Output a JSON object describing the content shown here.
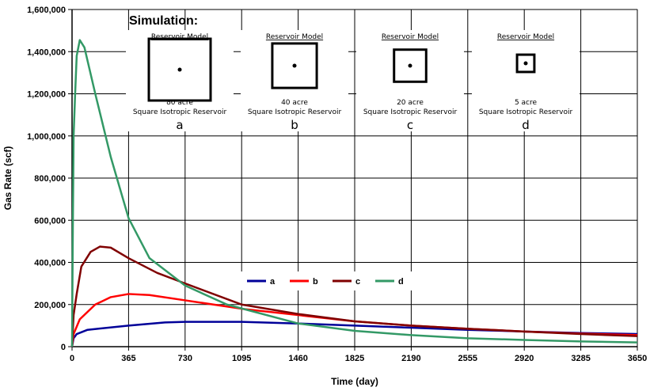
{
  "chart_data": {
    "type": "line",
    "xlabel": "Time (day)",
    "ylabel": "Gas Rate (scf)",
    "xlim": [
      0,
      3650
    ],
    "ylim": [
      0,
      1600000
    ],
    "xticks": [
      0,
      365,
      730,
      1095,
      1460,
      1825,
      2190,
      2555,
      2920,
      3285,
      3650
    ],
    "yticks": [
      0,
      200000,
      400000,
      600000,
      800000,
      1000000,
      1200000,
      1400000,
      1600000
    ],
    "ytick_labels": [
      "0",
      "200,000",
      "400,000",
      "600,000",
      "800,000",
      "1,000,000",
      "1,200,000",
      "1,400,000",
      "1,600,000"
    ],
    "grid": true,
    "legend_position": "center",
    "series": [
      {
        "name": "a",
        "color": "#000099",
        "points": [
          [
            0,
            0
          ],
          [
            10,
            40000
          ],
          [
            30,
            60000
          ],
          [
            100,
            80000
          ],
          [
            365,
            100000
          ],
          [
            600,
            115000
          ],
          [
            730,
            118000
          ],
          [
            1095,
            118000
          ],
          [
            1460,
            110000
          ],
          [
            1825,
            100000
          ],
          [
            2190,
            90000
          ],
          [
            2555,
            80000
          ],
          [
            2920,
            72000
          ],
          [
            3285,
            65000
          ],
          [
            3650,
            60000
          ]
        ]
      },
      {
        "name": "b",
        "color": "#ff0000",
        "points": [
          [
            0,
            0
          ],
          [
            10,
            60000
          ],
          [
            50,
            130000
          ],
          [
            150,
            200000
          ],
          [
            250,
            235000
          ],
          [
            365,
            250000
          ],
          [
            500,
            245000
          ],
          [
            730,
            220000
          ],
          [
            1095,
            180000
          ],
          [
            1460,
            150000
          ],
          [
            1825,
            120000
          ],
          [
            2190,
            100000
          ],
          [
            2555,
            85000
          ],
          [
            2920,
            72000
          ],
          [
            3285,
            62000
          ],
          [
            3650,
            55000
          ]
        ]
      },
      {
        "name": "c",
        "color": "#800000",
        "points": [
          [
            0,
            0
          ],
          [
            10,
            150000
          ],
          [
            30,
            250000
          ],
          [
            60,
            380000
          ],
          [
            120,
            450000
          ],
          [
            180,
            475000
          ],
          [
            250,
            470000
          ],
          [
            365,
            420000
          ],
          [
            550,
            350000
          ],
          [
            730,
            300000
          ],
          [
            1095,
            200000
          ],
          [
            1460,
            155000
          ],
          [
            1825,
            120000
          ],
          [
            2190,
            100000
          ],
          [
            2555,
            85000
          ],
          [
            2920,
            72000
          ],
          [
            3285,
            60000
          ],
          [
            3650,
            50000
          ]
        ]
      },
      {
        "name": "d",
        "color": "#339966",
        "points": [
          [
            0,
            0
          ],
          [
            5,
            550000
          ],
          [
            10,
            1000000
          ],
          [
            20,
            1200000
          ],
          [
            30,
            1380000
          ],
          [
            50,
            1455000
          ],
          [
            80,
            1420000
          ],
          [
            150,
            1200000
          ],
          [
            250,
            900000
          ],
          [
            365,
            610000
          ],
          [
            500,
            420000
          ],
          [
            730,
            290000
          ],
          [
            1000,
            200000
          ],
          [
            1460,
            110000
          ],
          [
            1825,
            75000
          ],
          [
            2190,
            55000
          ],
          [
            2555,
            40000
          ],
          [
            2920,
            32000
          ],
          [
            3285,
            25000
          ],
          [
            3650,
            20000
          ]
        ]
      }
    ],
    "inset": {
      "title": "Simulation:",
      "panels": [
        {
          "heading": "Reservoir  Model",
          "area": "80 acre",
          "desc": "Square Isotropic Reservoir",
          "label": "a",
          "size": 1.0
        },
        {
          "heading": "Reservoir  Model",
          "area": "40 acre",
          "desc": "Square Isotropic Reservoir",
          "label": "b",
          "size": 0.72
        },
        {
          "heading": "Reservoir  Model",
          "area": "20 acre",
          "desc": "Square Isotropic Reservoir",
          "label": "c",
          "size": 0.52
        },
        {
          "heading": "Reservoir  Model",
          "area": "5 acre",
          "desc": "Square Isotropic Reservoir",
          "label": "d",
          "size": 0.28
        }
      ]
    }
  }
}
